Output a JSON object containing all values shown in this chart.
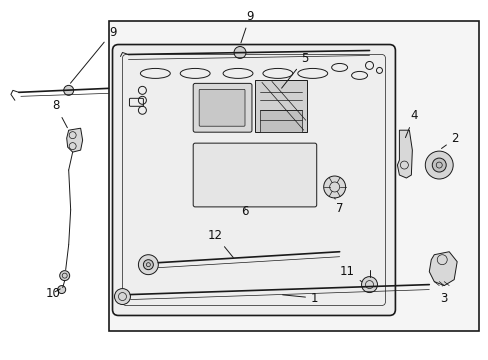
{
  "bg_color": "#ffffff",
  "line_color": "#1a1a1a",
  "fig_width": 4.89,
  "fig_height": 3.6,
  "dpi": 100,
  "panel_bg": "#f8f8f8",
  "gate_bg": "#f0f0f0"
}
